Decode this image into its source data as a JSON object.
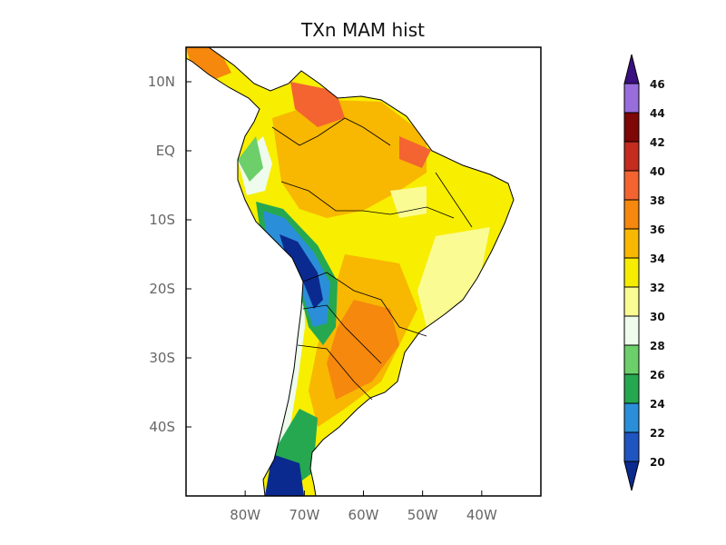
{
  "title": "TXn MAM hist",
  "map": {
    "region": "South America",
    "lat_ticks": [
      "10N",
      "EQ",
      "10S",
      "20S",
      "30S",
      "40S"
    ],
    "lon_ticks": [
      "80W",
      "70W",
      "60W",
      "50W",
      "40W"
    ],
    "lon_range": [
      -90,
      -30
    ],
    "lat_range": [
      -50,
      15
    ]
  },
  "colorbar": {
    "labels": [
      "20",
      "22",
      "24",
      "26",
      "28",
      "30",
      "32",
      "34",
      "36",
      "38",
      "40",
      "42",
      "44",
      "46"
    ],
    "colors": [
      "#0b2a8f",
      "#1f55c0",
      "#2a8fd8",
      "#26a851",
      "#6ccf6a",
      "#effbec",
      "#fbfb93",
      "#f5ec00",
      "#f8b700",
      "#f5880d",
      "#f36430",
      "#c32c1f",
      "#7e0707",
      "#9a6ddd",
      "#3a0f80"
    ]
  },
  "chart_data": {
    "type": "heatmap",
    "title": "TXn MAM hist",
    "variable": "TXn",
    "season": "MAM",
    "period": "hist",
    "units_scale": [
      20,
      46
    ],
    "legend_position": "right"
  }
}
